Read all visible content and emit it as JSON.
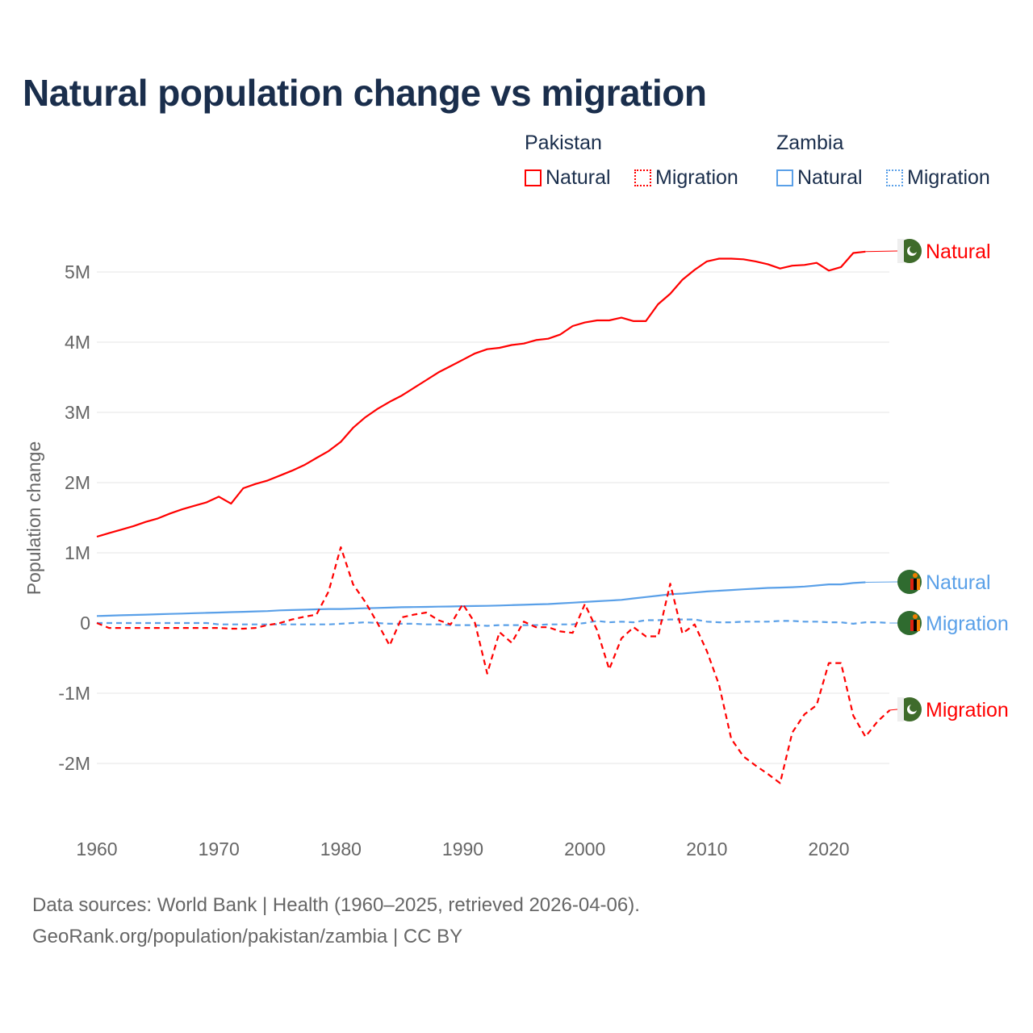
{
  "title": "Natural population change vs migration",
  "legend": {
    "groups": [
      {
        "name": "Pakistan",
        "items": [
          "Natural",
          "Migration"
        ]
      },
      {
        "name": "Zambia",
        "items": [
          "Natural",
          "Migration"
        ]
      }
    ]
  },
  "footer": {
    "line1": "Data sources: World Bank | Health (1960–2025, retrieved 2026-04-06).",
    "line2": "GeoRank.org/population/pakistan/zambia | CC BY"
  },
  "colors": {
    "pakistan": "#ff0000",
    "zambia": "#5aa0e8",
    "title": "#1a2e4c"
  },
  "chart_data": {
    "type": "line",
    "title": "Natural population change vs migration",
    "xlabel": "",
    "ylabel": "Population change",
    "xlim": [
      1960,
      2025
    ],
    "ylim": [
      -2.5,
      5.5
    ],
    "x_ticks": [
      1960,
      1970,
      1980,
      1990,
      2000,
      2010,
      2020
    ],
    "y_ticks": [
      {
        "v": 5,
        "label": "5M"
      },
      {
        "v": 4,
        "label": "4M"
      },
      {
        "v": 3,
        "label": "3M"
      },
      {
        "v": 2,
        "label": "2M"
      },
      {
        "v": 1,
        "label": "1M"
      },
      {
        "v": 0,
        "label": "0"
      },
      {
        "v": -1,
        "label": "-1M"
      },
      {
        "v": -2,
        "label": "-2M"
      }
    ],
    "units": "millions",
    "grid": true,
    "series": [
      {
        "name": "Pakistan Natural",
        "label": "Natural",
        "country": "pakistan",
        "dash": false,
        "start": 1960,
        "values": [
          1.23,
          1.28,
          1.33,
          1.38,
          1.44,
          1.49,
          1.56,
          1.62,
          1.67,
          1.72,
          1.8,
          1.7,
          1.92,
          1.98,
          2.03,
          2.1,
          2.17,
          2.25,
          2.35,
          2.45,
          2.58,
          2.78,
          2.93,
          3.05,
          3.15,
          3.24,
          3.35,
          3.46,
          3.57,
          3.66,
          3.75,
          3.84,
          3.9,
          3.92,
          3.96,
          3.98,
          4.03,
          4.05,
          4.11,
          4.23,
          4.28,
          4.31,
          4.31,
          4.35,
          4.3,
          4.3,
          4.54,
          4.69,
          4.89,
          5.03,
          5.15,
          5.19,
          5.19,
          5.18,
          5.15,
          5.11,
          5.05,
          5.09,
          5.1,
          5.13,
          5.02,
          5.07,
          5.27,
          5.29
        ]
      },
      {
        "name": "Pakistan Migration",
        "label": "Migration",
        "country": "pakistan",
        "dash": true,
        "start": 1960,
        "values": [
          0,
          -0.07,
          -0.07,
          -0.07,
          -0.07,
          -0.07,
          -0.07,
          -0.07,
          -0.07,
          -0.07,
          -0.07,
          -0.08,
          -0.08,
          -0.07,
          -0.03,
          0,
          0.05,
          0.09,
          0.12,
          0.45,
          1.08,
          0.55,
          0.3,
          0,
          -0.32,
          0.08,
          0.12,
          0.15,
          0.04,
          -0.02,
          0.27,
          0,
          -0.72,
          -0.13,
          -0.28,
          0.02,
          -0.06,
          -0.06,
          -0.12,
          -0.14,
          0.27,
          -0.1,
          -0.66,
          -0.22,
          -0.06,
          -0.19,
          -0.19,
          0.56,
          -0.15,
          -0.02,
          -0.4,
          -0.88,
          -1.65,
          -1.9,
          -2.03,
          -2.15,
          -2.28,
          -1.56,
          -1.3,
          -1.17,
          -0.57,
          -0.57,
          -1.32,
          -1.62,
          -1.4,
          -1.24
        ]
      },
      {
        "name": "Zambia Natural",
        "label": "Natural",
        "country": "zambia",
        "dash": false,
        "start": 1960,
        "values": [
          0.1,
          0.105,
          0.11,
          0.115,
          0.12,
          0.125,
          0.13,
          0.135,
          0.14,
          0.145,
          0.15,
          0.155,
          0.16,
          0.165,
          0.17,
          0.18,
          0.185,
          0.19,
          0.195,
          0.2,
          0.2,
          0.205,
          0.21,
          0.215,
          0.22,
          0.225,
          0.228,
          0.23,
          0.233,
          0.236,
          0.24,
          0.243,
          0.245,
          0.25,
          0.255,
          0.26,
          0.265,
          0.27,
          0.28,
          0.29,
          0.3,
          0.31,
          0.32,
          0.33,
          0.35,
          0.37,
          0.39,
          0.41,
          0.42,
          0.435,
          0.45,
          0.46,
          0.47,
          0.48,
          0.49,
          0.5,
          0.505,
          0.51,
          0.52,
          0.535,
          0.55,
          0.55,
          0.57,
          0.58
        ]
      },
      {
        "name": "Zambia Migration",
        "label": "Migration",
        "country": "zambia",
        "dash": true,
        "start": 1960,
        "values": [
          0,
          0,
          0,
          0,
          0,
          0,
          0,
          0,
          0,
          0,
          -0.02,
          -0.02,
          -0.02,
          -0.02,
          -0.02,
          -0.02,
          -0.02,
          -0.02,
          -0.02,
          -0.02,
          -0.01,
          0,
          0.01,
          0,
          -0.01,
          -0.01,
          -0.01,
          -0.02,
          -0.02,
          -0.03,
          -0.03,
          -0.03,
          -0.04,
          -0.03,
          -0.03,
          -0.03,
          -0.03,
          -0.02,
          -0.02,
          -0.02,
          0,
          0.03,
          0.01,
          0.02,
          0.01,
          0.04,
          0.04,
          0.05,
          0.05,
          0.05,
          0.02,
          0.01,
          0.01,
          0.02,
          0.02,
          0.02,
          0.03,
          0.03,
          0.02,
          0.02,
          0.01,
          0.01,
          -0.01,
          0.01,
          0.01,
          0
        ]
      }
    ]
  }
}
